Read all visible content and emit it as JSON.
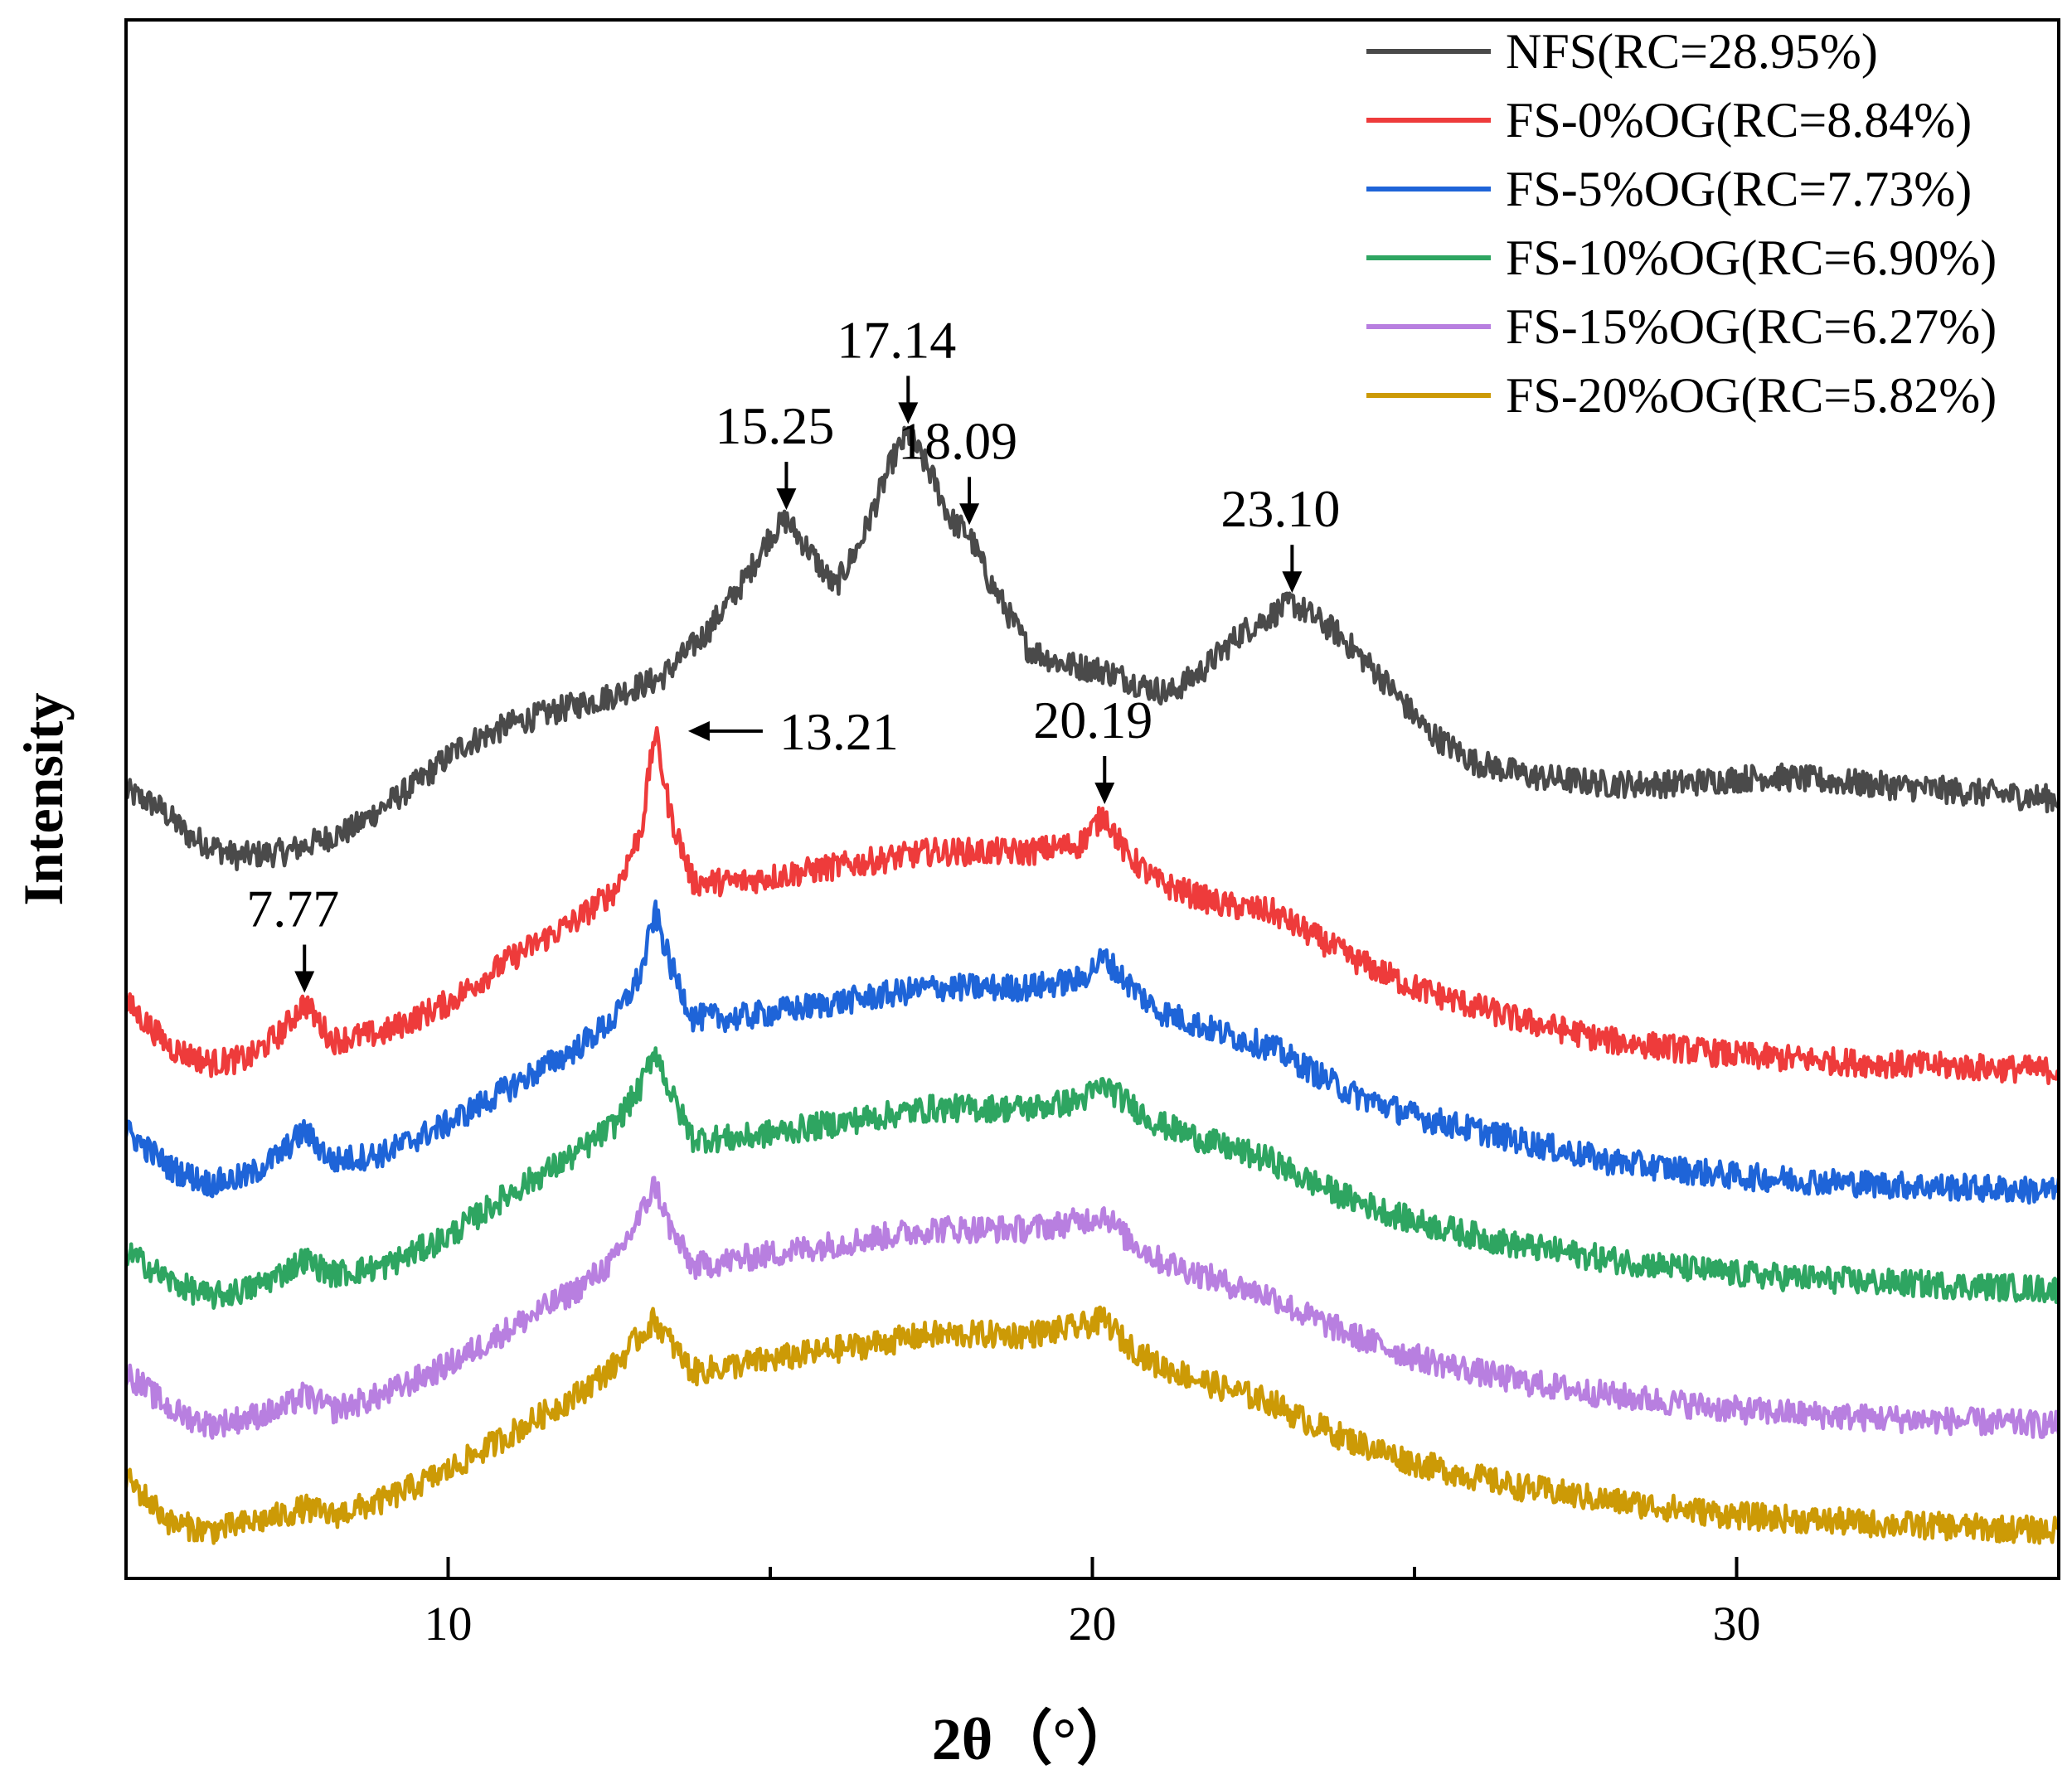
{
  "chart_data": {
    "type": "line",
    "title": "",
    "xlabel": "2θ（°）",
    "ylabel": "Intensity",
    "xlim": [
      5,
      35
    ],
    "ylim": [
      0,
      100
    ],
    "x_ticks": [
      10,
      20,
      30
    ],
    "x_tick_labels": [
      "10",
      "20",
      "30"
    ],
    "y_ticks_shown": false,
    "grid": false,
    "legend_position": "top-right",
    "series": [
      {
        "name": "NFS(RC=28.95%)",
        "color": "#4a4a4a",
        "noise": 0.9,
        "x": [
          5,
          5.5,
          6,
          6.7,
          7.5,
          8.5,
          9.5,
          10.2,
          11,
          11.8,
          12.5,
          13.3,
          14,
          14.6,
          15.0,
          15.25,
          15.6,
          16.0,
          16.4,
          16.9,
          17.14,
          17.5,
          17.8,
          18.09,
          18.4,
          19,
          19.5,
          20.2,
          20.8,
          21.2,
          21.7,
          22.3,
          23.1,
          23.8,
          24.5,
          25.2,
          25.9,
          26.8,
          28,
          29,
          30.5,
          32,
          33.5,
          35
        ],
        "y": [
          51.5,
          50.5,
          48.5,
          47.2,
          47.5,
          49,
          52,
          54.5,
          56,
          57,
          57.8,
          59,
          62,
          65.5,
          68.5,
          69.5,
          67.5,
          65,
          68,
          73.5,
          75.2,
          72.5,
          69.5,
          68.5,
          65.5,
          61,
          60,
          59.5,
          58.5,
          58,
          59.5,
          62,
          64,
          62,
          59,
          55.5,
          53.5,
          52.5,
          52,
          52,
          52.5,
          52,
          51.5,
          51
        ]
      },
      {
        "name": "FS-0%OG(RC=8.84%)",
        "color": "#ee3b3b",
        "noise": 0.9,
        "x": [
          5,
          5.7,
          6.3,
          6.9,
          7.4,
          7.77,
          8.2,
          9,
          10,
          11,
          12,
          12.6,
          13.0,
          13.21,
          13.45,
          13.8,
          14.5,
          16,
          17.5,
          19,
          19.8,
          20.19,
          20.5,
          21,
          22,
          22.8,
          23.2,
          24,
          25,
          26.5,
          28,
          30,
          32,
          35
        ],
        "y": [
          37.5,
          34.5,
          33.5,
          33.8,
          35.5,
          37.5,
          35,
          35.5,
          37.5,
          40.5,
          43,
          45,
          49,
          55.5,
          50,
          45.5,
          45.5,
          46.5,
          47.5,
          47.5,
          48,
          50,
          47.5,
          45.5,
          44,
          43.5,
          42.5,
          40.5,
          38.5,
          36.5,
          35,
          34,
          33.5,
          33
        ]
      },
      {
        "name": "FS-5%OG(RC=7.73%)",
        "color": "#1e64d8",
        "noise": 0.9,
        "x": [
          5,
          5.7,
          6.3,
          6.9,
          7.4,
          7.77,
          8.2,
          9,
          10,
          11,
          12,
          12.6,
          13.0,
          13.21,
          13.45,
          13.8,
          14.5,
          16,
          17.5,
          19,
          19.8,
          20.19,
          20.5,
          21,
          22,
          22.8,
          23.2,
          24,
          25,
          26.5,
          28,
          30,
          32,
          35
        ],
        "y": [
          29,
          26.5,
          25.5,
          26,
          27.5,
          29,
          27,
          27.5,
          29.5,
          32,
          34.5,
          36.5,
          39.5,
          43.5,
          40,
          36.5,
          36.5,
          37.5,
          38.5,
          38.5,
          39,
          40.5,
          39,
          37,
          35.5,
          34.5,
          33.5,
          31.5,
          30,
          28.5,
          27,
          26,
          25.5,
          25
        ]
      },
      {
        "name": "FS-10%OG(RC=6.90%)",
        "color": "#2ea561",
        "noise": 0.9,
        "x": [
          5,
          5.7,
          6.3,
          6.9,
          7.4,
          7.77,
          8.2,
          9,
          10,
          11,
          12,
          12.6,
          13.0,
          13.21,
          13.45,
          13.8,
          14.5,
          16,
          17.5,
          19,
          19.8,
          20.19,
          20.5,
          21,
          22,
          22.8,
          23.2,
          24,
          25,
          26.5,
          28,
          30,
          32,
          35
        ],
        "y": [
          21,
          19,
          18,
          18.5,
          19.5,
          20.5,
          19.5,
          20,
          22,
          25,
          27.5,
          29.5,
          32,
          34.5,
          31.5,
          28.5,
          28.5,
          29.5,
          30.5,
          30.5,
          31,
          32,
          31,
          29.5,
          28,
          27,
          26,
          24.5,
          23,
          21.5,
          20.5,
          19.5,
          19,
          18.5
        ]
      },
      {
        "name": "FS-15%OG(RC=6.27%)",
        "color": "#b87fe0",
        "noise": 0.9,
        "x": [
          5,
          5.7,
          6.3,
          6.9,
          7.4,
          7.77,
          8.2,
          9,
          10,
          11,
          12,
          12.6,
          13.0,
          13.21,
          13.45,
          13.8,
          14.5,
          16,
          17.5,
          19,
          19.8,
          20.19,
          20.5,
          21,
          22,
          22.8,
          23.2,
          24,
          25,
          26.5,
          28,
          30,
          32,
          35
        ],
        "y": [
          13,
          10.5,
          9.5,
          10,
          10.5,
          11.5,
          10.5,
          11.5,
          13.5,
          16,
          18.5,
          20.5,
          23.5,
          25.5,
          22.5,
          20,
          20.5,
          21.5,
          22.5,
          22.5,
          23,
          23.5,
          22,
          20.5,
          19,
          18,
          17,
          15.5,
          14,
          12.5,
          11.5,
          10.5,
          10,
          9.5
        ]
      },
      {
        "name": "FS-20%OG(RC=5.82%)",
        "color": "#cc9a06",
        "noise": 0.9,
        "x": [
          5,
          5.7,
          6.3,
          6.9,
          7.4,
          7.77,
          8.2,
          9,
          10,
          11,
          12,
          12.6,
          13.0,
          13.21,
          13.45,
          13.8,
          14.5,
          16,
          17.5,
          19,
          19.8,
          20.19,
          20.5,
          21,
          22,
          22.8,
          23.2,
          24,
          25,
          26.5,
          28,
          30,
          32,
          35
        ],
        "y": [
          6,
          3,
          2.5,
          3,
          3.5,
          4,
          3.5,
          4.5,
          6.5,
          9,
          11.5,
          13.5,
          15.5,
          16.5,
          15,
          13,
          13.5,
          14.5,
          15.5,
          15.5,
          16,
          16.5,
          15,
          13.5,
          12,
          11,
          10,
          8.5,
          7,
          5.5,
          4.5,
          3.5,
          3,
          2.5
        ]
      }
    ],
    "annotations": [
      {
        "label": "15.25",
        "x": 15.25,
        "y": 69.5,
        "direction": "down"
      },
      {
        "label": "17.14",
        "x": 17.14,
        "y": 75.2,
        "direction": "down"
      },
      {
        "label": "18.09",
        "x": 18.09,
        "y": 68.5,
        "direction": "down"
      },
      {
        "label": "23.10",
        "x": 23.1,
        "y": 64,
        "direction": "down"
      },
      {
        "label": "13.21",
        "x": 13.21,
        "y": 55.5,
        "direction": "left"
      },
      {
        "label": "20.19",
        "x": 20.19,
        "y": 50,
        "direction": "down"
      },
      {
        "label": "7.77",
        "x": 7.77,
        "y": 37.5,
        "direction": "down"
      }
    ]
  }
}
